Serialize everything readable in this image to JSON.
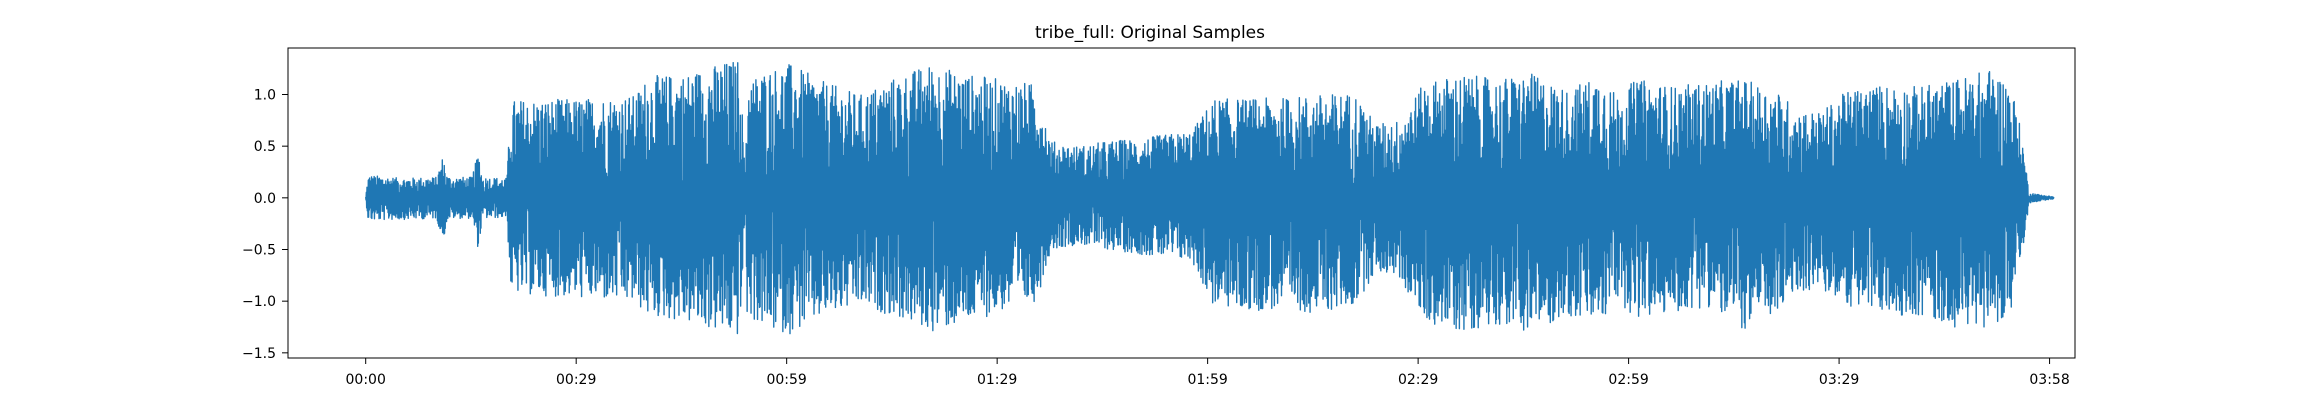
{
  "chart_data": {
    "type": "line",
    "title": "tribe_full: Original Samples",
    "xlabel": "",
    "ylabel": "",
    "series_color": "#1f77b4",
    "x_unit": "seconds",
    "xlim": [
      -11,
      242
    ],
    "ylim": [
      -1.55,
      1.45
    ],
    "grid": false,
    "x_ticks": [
      {
        "value": 0,
        "label": "00:00"
      },
      {
        "value": 29.8,
        "label": "00:29"
      },
      {
        "value": 59.6,
        "label": "00:59"
      },
      {
        "value": 89.4,
        "label": "01:29"
      },
      {
        "value": 119.2,
        "label": "01:59"
      },
      {
        "value": 149,
        "label": "02:29"
      },
      {
        "value": 178.8,
        "label": "02:59"
      },
      {
        "value": 208.6,
        "label": "03:29"
      },
      {
        "value": 238.4,
        "label": "03:58"
      }
    ],
    "y_ticks": [
      {
        "value": 1.0,
        "label": "1.0"
      },
      {
        "value": 0.5,
        "label": "0.5"
      },
      {
        "value": 0.0,
        "label": "0.0"
      },
      {
        "value": -0.5,
        "label": "−0.5"
      },
      {
        "value": -1.0,
        "label": "−1.0"
      },
      {
        "value": -1.5,
        "label": "−1.5"
      }
    ],
    "envelope": {
      "time": [
        0,
        0.3,
        0.6,
        5,
        10,
        11,
        11.5,
        12,
        15,
        16,
        16.5,
        17,
        20,
        20.5,
        21,
        30,
        38,
        40,
        45,
        50,
        53,
        53.7,
        54,
        57,
        60,
        65,
        70,
        75,
        80,
        85,
        90,
        95,
        97,
        101,
        105,
        110,
        117,
        120,
        125,
        130,
        135,
        140,
        143,
        146,
        150,
        155,
        160,
        165,
        170,
        175,
        177,
        180,
        185,
        190,
        195,
        200,
        203,
        206,
        210,
        215,
        220,
        225,
        230,
        233,
        234.5,
        235.5,
        237,
        239
      ],
      "upper": [
        0.01,
        0.2,
        0.22,
        0.19,
        0.2,
        0.42,
        0.22,
        0.2,
        0.2,
        0.45,
        0.2,
        0.2,
        0.19,
        0.88,
        0.95,
        0.96,
        0.99,
        1.18,
        1.2,
        1.3,
        1.35,
        0.22,
        1.15,
        1.25,
        1.3,
        1.12,
        1.0,
        1.17,
        1.3,
        1.2,
        1.15,
        1.1,
        0.55,
        0.5,
        0.55,
        0.58,
        0.65,
        0.96,
        0.96,
        0.97,
        1.0,
        1.02,
        0.72,
        0.75,
        1.12,
        1.2,
        1.15,
        1.2,
        1.05,
        1.2,
        1.0,
        1.15,
        1.08,
        1.12,
        1.15,
        1.02,
        0.85,
        0.83,
        1.05,
        1.1,
        1.08,
        1.15,
        1.25,
        1.1,
        0.6,
        0.05,
        0.03,
        0.01
      ],
      "lower": [
        -0.01,
        -0.2,
        -0.22,
        -0.21,
        -0.2,
        -0.42,
        -0.22,
        -0.2,
        -0.2,
        -0.52,
        -0.2,
        -0.2,
        -0.19,
        -0.88,
        -0.93,
        -0.97,
        -1.02,
        -1.15,
        -1.2,
        -1.3,
        -1.35,
        -0.22,
        -1.15,
        -1.28,
        -1.32,
        -1.15,
        -1.05,
        -1.15,
        -1.3,
        -1.22,
        -1.1,
        -1.0,
        -0.5,
        -0.45,
        -0.5,
        -0.55,
        -0.62,
        -1.05,
        -1.1,
        -1.08,
        -1.12,
        -1.05,
        -0.72,
        -0.75,
        -1.2,
        -1.3,
        -1.22,
        -1.3,
        -1.15,
        -1.22,
        -0.98,
        -1.18,
        -1.12,
        -1.05,
        -1.28,
        -1.12,
        -0.9,
        -0.9,
        -1.05,
        -1.12,
        -1.15,
        -1.25,
        -1.25,
        -1.1,
        -0.6,
        -0.05,
        -0.03,
        -0.01
      ]
    }
  }
}
